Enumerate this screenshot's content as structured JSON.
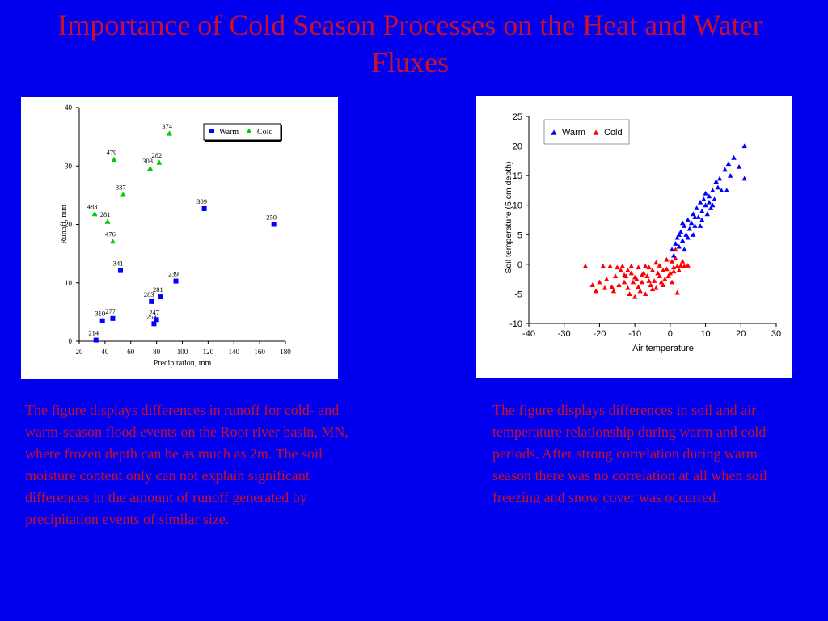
{
  "slide": {
    "title": "Importance of Cold Season Processes on the Heat and Water Fluxes",
    "caption_left": "The figure displays differences in runoff for cold- and warm-season flood events on the Root river basin, MN, where frozen depth can be as much as 2m.  The soil moisture content only can not explain significant differences in the amount of runoff generated by precipitation events of similar size.",
    "caption_right": "The figure displays differences in soil and air temperature relationship during warm and cold periods.  After strong correlation during warm season there was no correlation at all when soil freezing and snow cover was occurred."
  },
  "colors": {
    "background": "#0000ee",
    "text_red": "#c8102e",
    "warm": "#0000ff",
    "cold_left": "#00cc00",
    "cold_right": "#ff0000"
  },
  "chart_data": [
    {
      "type": "scatter",
      "title": "",
      "xlabel": "Precipitation, mm",
      "ylabel": "Runoff, mm",
      "xlim": [
        20,
        180
      ],
      "ylim": [
        0,
        40
      ],
      "xticks": [
        20,
        40,
        60,
        80,
        100,
        120,
        140,
        160,
        180
      ],
      "yticks": [
        0,
        10,
        20,
        30,
        40
      ],
      "grid": false,
      "legend_position": "top-right",
      "series": [
        {
          "name": "Warm",
          "marker": "square",
          "points": [
            {
              "x": 33,
              "y": 0.2,
              "label": "214"
            },
            {
              "x": 38,
              "y": 3.5,
              "label": "310"
            },
            {
              "x": 46,
              "y": 3.9,
              "label": "277"
            },
            {
              "x": 52,
              "y": 12.1,
              "label": "341"
            },
            {
              "x": 76,
              "y": 6.8,
              "label": "283"
            },
            {
              "x": 78,
              "y": 3.0,
              "label": "253"
            },
            {
              "x": 80,
              "y": 3.7,
              "label": "247"
            },
            {
              "x": 83,
              "y": 7.6,
              "label": "281"
            },
            {
              "x": 95,
              "y": 10.3,
              "label": "239"
            },
            {
              "x": 117,
              "y": 22.7,
              "label": "309"
            },
            {
              "x": 171,
              "y": 20.0,
              "label": "250"
            }
          ]
        },
        {
          "name": "Cold",
          "marker": "triangle",
          "points": [
            {
              "x": 32,
              "y": 21.8,
              "label": "483"
            },
            {
              "x": 42,
              "y": 20.5,
              "label": "281"
            },
            {
              "x": 46,
              "y": 17.1,
              "label": "476"
            },
            {
              "x": 47,
              "y": 31.1,
              "label": "479"
            },
            {
              "x": 54,
              "y": 25.1,
              "label": "337"
            },
            {
              "x": 75,
              "y": 29.6,
              "label": "303"
            },
            {
              "x": 82,
              "y": 30.6,
              "label": "282"
            },
            {
              "x": 90,
              "y": 35.6,
              "label": "374"
            }
          ]
        }
      ]
    },
    {
      "type": "scatter",
      "title": "",
      "xlabel": "Air temperature",
      "ylabel": "Soil temperature (5 cm depth)",
      "xlim": [
        -40,
        30
      ],
      "ylim": [
        -10,
        25
      ],
      "xticks": [
        -40,
        -30,
        -20,
        -10,
        0,
        10,
        20,
        30
      ],
      "yticks": [
        -10,
        -5,
        0,
        5,
        10,
        15,
        20,
        25
      ],
      "grid": false,
      "legend_position": "top-left",
      "series": [
        {
          "name": "Warm",
          "marker": "triangle",
          "points": [
            {
              "x": 0.5,
              "y": 2.5
            },
            {
              "x": 1.5,
              "y": 3.5
            },
            {
              "x": 2.0,
              "y": 4.5
            },
            {
              "x": 2.5,
              "y": 3.0
            },
            {
              "x": 3.0,
              "y": 5.5
            },
            {
              "x": 3.5,
              "y": 4.0
            },
            {
              "x": 4.0,
              "y": 6.5
            },
            {
              "x": 4.5,
              "y": 5.0
            },
            {
              "x": 5.0,
              "y": 7.5
            },
            {
              "x": 5.5,
              "y": 6.0
            },
            {
              "x": 6.0,
              "y": 7.0
            },
            {
              "x": 6.5,
              "y": 8.5
            },
            {
              "x": 7.0,
              "y": 6.5
            },
            {
              "x": 7.5,
              "y": 9.5
            },
            {
              "x": 8.0,
              "y": 8.0
            },
            {
              "x": 8.5,
              "y": 10.5
            },
            {
              "x": 9.0,
              "y": 9.0
            },
            {
              "x": 9.5,
              "y": 11.0
            },
            {
              "x": 10.0,
              "y": 10.0
            },
            {
              "x": 10.5,
              "y": 8.5
            },
            {
              "x": 11.0,
              "y": 11.5
            },
            {
              "x": 11.5,
              "y": 9.5
            },
            {
              "x": 12.0,
              "y": 12.5
            },
            {
              "x": 12.5,
              "y": 11.0
            },
            {
              "x": 13.0,
              "y": 14.0
            },
            {
              "x": 13.5,
              "y": 13.0
            },
            {
              "x": 14.0,
              "y": 14.5
            },
            {
              "x": 14.5,
              "y": 12.5
            },
            {
              "x": 15.5,
              "y": 16.0
            },
            {
              "x": 16.0,
              "y": 12.5
            },
            {
              "x": 16.5,
              "y": 17.0
            },
            {
              "x": 17.0,
              "y": 15.0
            },
            {
              "x": 18.0,
              "y": 18.0
            },
            {
              "x": 19.5,
              "y": 16.5
            },
            {
              "x": 21.0,
              "y": 20.0
            },
            {
              "x": 21.0,
              "y": 14.5
            },
            {
              "x": 6.5,
              "y": 5.0
            },
            {
              "x": 7.0,
              "y": 8.0
            },
            {
              "x": 8.5,
              "y": 6.5
            },
            {
              "x": 9.0,
              "y": 7.5
            },
            {
              "x": 10.0,
              "y": 12.0
            },
            {
              "x": 11.0,
              "y": 10.5
            },
            {
              "x": 12.0,
              "y": 10.0
            },
            {
              "x": 2.5,
              "y": 5.0
            },
            {
              "x": 4.0,
              "y": 2.5
            },
            {
              "x": 1.0,
              "y": 1.5
            },
            {
              "x": 5.0,
              "y": 4.5
            },
            {
              "x": 3.5,
              "y": 7.0
            }
          ]
        },
        {
          "name": "Cold",
          "marker": "triangle",
          "points": [
            {
              "x": -24,
              "y": -0.3
            },
            {
              "x": -22,
              "y": -3.5
            },
            {
              "x": -21,
              "y": -4.5
            },
            {
              "x": -20,
              "y": -3.0
            },
            {
              "x": -19,
              "y": -0.3
            },
            {
              "x": -18.5,
              "y": -4.0
            },
            {
              "x": -18,
              "y": -2.5
            },
            {
              "x": -17,
              "y": -0.3
            },
            {
              "x": -16.5,
              "y": -3.8
            },
            {
              "x": -16,
              "y": -4.5
            },
            {
              "x": -15.5,
              "y": -2.0
            },
            {
              "x": -15,
              "y": -0.5
            },
            {
              "x": -14.5,
              "y": -3.5
            },
            {
              "x": -14,
              "y": -1.0
            },
            {
              "x": -13.5,
              "y": -0.3
            },
            {
              "x": -13,
              "y": -3.0
            },
            {
              "x": -12.5,
              "y": -2.0
            },
            {
              "x": -12,
              "y": -4.0
            },
            {
              "x": -11.5,
              "y": -5.0
            },
            {
              "x": -11,
              "y": -1.5
            },
            {
              "x": -10.5,
              "y": -3.0
            },
            {
              "x": -10,
              "y": -5.5
            },
            {
              "x": -9.5,
              "y": -2.5
            },
            {
              "x": -9,
              "y": -0.5
            },
            {
              "x": -8.5,
              "y": -4.5
            },
            {
              "x": -8,
              "y": -3.0
            },
            {
              "x": -7.5,
              "y": -1.5
            },
            {
              "x": -7,
              "y": -5.0
            },
            {
              "x": -6.5,
              "y": -2.0
            },
            {
              "x": -6,
              "y": -0.5
            },
            {
              "x": -5.5,
              "y": -3.5
            },
            {
              "x": -5,
              "y": -1.0
            },
            {
              "x": -4.5,
              "y": -2.8
            },
            {
              "x": -4,
              "y": -4.0
            },
            {
              "x": -3.5,
              "y": -1.5
            },
            {
              "x": -3,
              "y": -0.2
            },
            {
              "x": -2.5,
              "y": -3.0
            },
            {
              "x": -2,
              "y": -1.0
            },
            {
              "x": -1.5,
              "y": -2.5
            },
            {
              "x": -1,
              "y": -0.8
            },
            {
              "x": -0.5,
              "y": -2.0
            },
            {
              "x": 0,
              "y": -1.5
            },
            {
              "x": 0.5,
              "y": 0.5
            },
            {
              "x": 1,
              "y": -0.5
            },
            {
              "x": 1.5,
              "y": 1.0
            },
            {
              "x": 2,
              "y": -0.3
            },
            {
              "x": 2.5,
              "y": -1.0
            },
            {
              "x": 3,
              "y": -0.2
            },
            {
              "x": 4,
              "y": -0.3
            },
            {
              "x": 5,
              "y": -0.2
            },
            {
              "x": -7,
              "y": -0.3
            },
            {
              "x": -8,
              "y": -1.8
            },
            {
              "x": -11,
              "y": -0.3
            },
            {
              "x": -12,
              "y": -1.0
            },
            {
              "x": -6,
              "y": -2.8
            },
            {
              "x": -5,
              "y": -4.2
            },
            {
              "x": -3,
              "y": -2.0
            },
            {
              "x": -2,
              "y": -3.5
            },
            {
              "x": 0.5,
              "y": -3.0
            },
            {
              "x": 1,
              "y": -1.2
            },
            {
              "x": 1.5,
              "y": 2.5
            },
            {
              "x": -1,
              "y": 0.8
            },
            {
              "x": -9,
              "y": -3.8
            },
            {
              "x": -10,
              "y": -2.2
            },
            {
              "x": -13,
              "y": -1.8
            },
            {
              "x": 2,
              "y": -4.8
            },
            {
              "x": 3.5,
              "y": 0.5
            },
            {
              "x": -4,
              "y": 0.3
            }
          ]
        }
      ]
    }
  ]
}
